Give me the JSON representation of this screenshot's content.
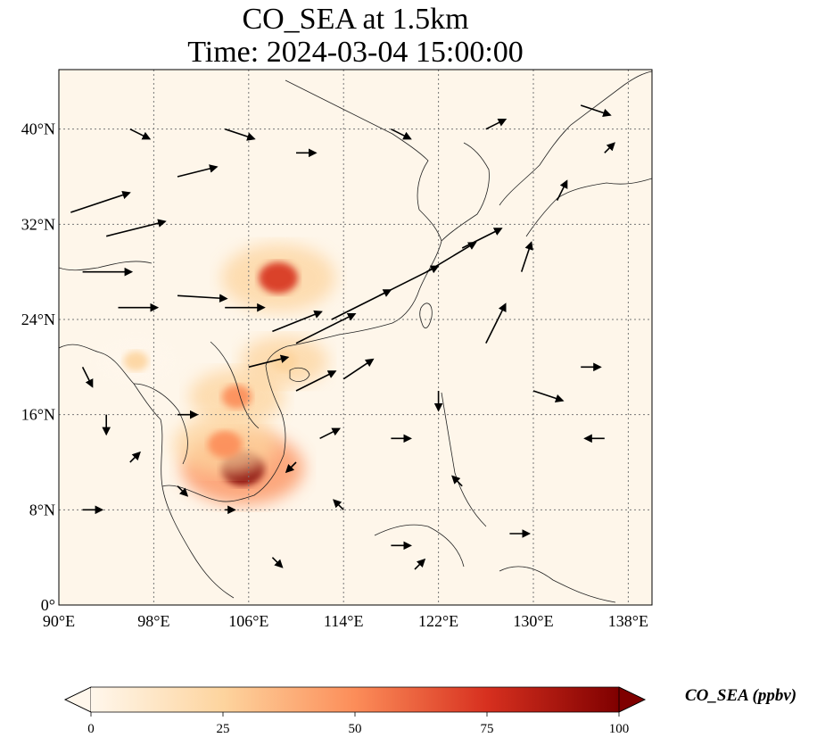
{
  "title": {
    "line1": "CO_SEA at 1.5km",
    "line2": "Time: 2024-03-04 15:00:00"
  },
  "axes": {
    "lon_ticks": [
      "90°E",
      "98°E",
      "106°E",
      "114°E",
      "122°E",
      "130°E",
      "138°E"
    ],
    "lat_ticks": [
      "0°",
      "8°N",
      "16°N",
      "24°N",
      "32°N",
      "40°N"
    ],
    "lon_range": [
      90,
      140
    ],
    "lat_range": [
      0,
      45
    ],
    "gridlines": "dotted"
  },
  "colorbar": {
    "label": "CO_SEA (ppbv)",
    "ticks": [
      "0",
      "25",
      "50",
      "75",
      "100"
    ],
    "range": [
      0,
      100
    ],
    "colormap": "OrRd",
    "extend": "both",
    "colors": [
      "#fff7ec",
      "#fdd49e",
      "#fc8d59",
      "#d7301f",
      "#7f0000"
    ]
  },
  "chart_data": {
    "type": "heatmap",
    "variable": "CO_SEA",
    "units": "ppbv",
    "hotspots": [
      {
        "lon": 105.5,
        "lat": 11.5,
        "value": 95
      },
      {
        "lon": 108.5,
        "lat": 27.5,
        "value": 80
      },
      {
        "lon": 104.0,
        "lat": 13.5,
        "value": 60
      },
      {
        "lon": 105.0,
        "lat": 17.5,
        "value": 45
      },
      {
        "lon": 109.0,
        "lat": 20.5,
        "value": 30
      },
      {
        "lon": 96.5,
        "lat": 20.5,
        "value": 25
      }
    ],
    "wind_vectors": [
      {
        "lon": 91,
        "lat": 33,
        "u": 6,
        "v": 2
      },
      {
        "lon": 94,
        "lat": 31,
        "u": 6,
        "v": 1.5
      },
      {
        "lon": 92,
        "lat": 28,
        "u": 5,
        "v": 0
      },
      {
        "lon": 95,
        "lat": 25,
        "u": 4,
        "v": 0
      },
      {
        "lon": 100,
        "lat": 26,
        "u": 5,
        "v": -0.3
      },
      {
        "lon": 104,
        "lat": 25,
        "u": 4,
        "v": 0
      },
      {
        "lon": 108,
        "lat": 23,
        "u": 5,
        "v": 2
      },
      {
        "lon": 110,
        "lat": 22,
        "u": 6,
        "v": 3
      },
      {
        "lon": 113,
        "lat": 24,
        "u": 6,
        "v": 3
      },
      {
        "lon": 117,
        "lat": 26,
        "u": 6,
        "v": 3
      },
      {
        "lon": 121,
        "lat": 28,
        "u": 5,
        "v": 3
      },
      {
        "lon": 124,
        "lat": 30,
        "u": 4,
        "v": 2
      },
      {
        "lon": 126,
        "lat": 22,
        "u": 2,
        "v": 4
      },
      {
        "lon": 129,
        "lat": 28,
        "u": 1,
        "v": 3
      },
      {
        "lon": 110,
        "lat": 18,
        "u": 4,
        "v": 2
      },
      {
        "lon": 114,
        "lat": 19,
        "u": 3,
        "v": 2
      },
      {
        "lon": 106,
        "lat": 20,
        "u": 4,
        "v": 1
      },
      {
        "lon": 100,
        "lat": 16,
        "u": 2,
        "v": 0
      },
      {
        "lon": 96,
        "lat": 12,
        "u": 1,
        "v": 1
      },
      {
        "lon": 100,
        "lat": 10,
        "u": 1,
        "v": -1
      },
      {
        "lon": 104,
        "lat": 8,
        "u": 1,
        "v": 0
      },
      {
        "lon": 110,
        "lat": 12,
        "u": -1,
        "v": -1
      },
      {
        "lon": 114,
        "lat": 8,
        "u": -1,
        "v": 1
      },
      {
        "lon": 118,
        "lat": 5,
        "u": 2,
        "v": 0
      },
      {
        "lon": 124,
        "lat": 10,
        "u": -1,
        "v": 1
      },
      {
        "lon": 130,
        "lat": 18,
        "u": 3,
        "v": -1
      },
      {
        "lon": 134,
        "lat": 20,
        "u": 2,
        "v": 0
      },
      {
        "lon": 136,
        "lat": 14,
        "u": -2,
        "v": 0
      },
      {
        "lon": 128,
        "lat": 6,
        "u": 2,
        "v": 0
      },
      {
        "lon": 120,
        "lat": 3,
        "u": 1,
        "v": 1
      },
      {
        "lon": 96,
        "lat": 40,
        "u": 2,
        "v": -1
      },
      {
        "lon": 100,
        "lat": 36,
        "u": 4,
        "v": 1
      },
      {
        "lon": 104,
        "lat": 40,
        "u": 3,
        "v": -1
      },
      {
        "lon": 110,
        "lat": 38,
        "u": 2,
        "v": 0
      },
      {
        "lon": 118,
        "lat": 40,
        "u": 2,
        "v": -1
      },
      {
        "lon": 126,
        "lat": 40,
        "u": 2,
        "v": 1
      },
      {
        "lon": 134,
        "lat": 42,
        "u": 3,
        "v": -1
      },
      {
        "lon": 136,
        "lat": 38,
        "u": 1,
        "v": 1
      },
      {
        "lon": 132,
        "lat": 34,
        "u": 1,
        "v": 2
      },
      {
        "lon": 92,
        "lat": 20,
        "u": 1,
        "v": -2
      },
      {
        "lon": 94,
        "lat": 16,
        "u": 0,
        "v": -2
      },
      {
        "lon": 92,
        "lat": 8,
        "u": 2,
        "v": 0
      },
      {
        "lon": 108,
        "lat": 4,
        "u": 1,
        "v": -1
      },
      {
        "lon": 112,
        "lat": 14,
        "u": 2,
        "v": 1
      },
      {
        "lon": 118,
        "lat": 14,
        "u": 2,
        "v": 0
      },
      {
        "lon": 122,
        "lat": 18,
        "u": 0,
        "v": -2
      }
    ]
  }
}
